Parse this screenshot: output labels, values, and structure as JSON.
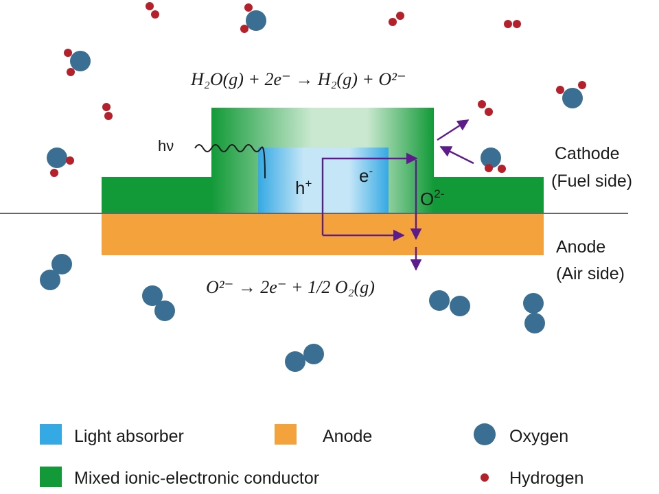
{
  "colors": {
    "mixed_conductor": "#129a38",
    "mixed_conductor_light": "#c9e8cf",
    "light_absorber": "#35a9e3",
    "light_absorber_light": "#c4e6f7",
    "anode": "#f4a23c",
    "oxygen": "#3a6f93",
    "hydrogen": "#b5202b",
    "arrow": "#5e1b8c",
    "text": "#1a1a1a"
  },
  "icons": {
    "photon": "wavy-line-icon",
    "oxygen": "oxygen-atom-icon",
    "hydrogen": "hydrogen-atom-icon"
  },
  "labels": {
    "photon": "hν",
    "hole": "h",
    "hole_sup": "+",
    "electron": "e",
    "electron_sup": "-",
    "oxide_ion": "O",
    "oxide_ion_sup": "2-",
    "cathode_line1": "Cathode",
    "cathode_line2": "(Fuel side)",
    "anode_line1": "Anode",
    "anode_line2": "(Air side)"
  },
  "equations": {
    "cathode": "H₂O(g) + 2e⁻ → H₂(g) + O²⁻",
    "anode": "O²⁻ → 2e⁻ + 1/2 O₂(g)"
  },
  "legend": [
    {
      "label": "Light absorber",
      "icon": "blue-square-icon"
    },
    {
      "label": "Anode",
      "icon": "orange-square-icon"
    },
    {
      "label": "Oxygen",
      "icon": "oxygen-atom-icon"
    },
    {
      "label": "Mixed ionic-electronic conductor",
      "icon": "green-square-icon"
    },
    {
      "label": "Hydrogen",
      "icon": "hydrogen-atom-icon"
    }
  ]
}
